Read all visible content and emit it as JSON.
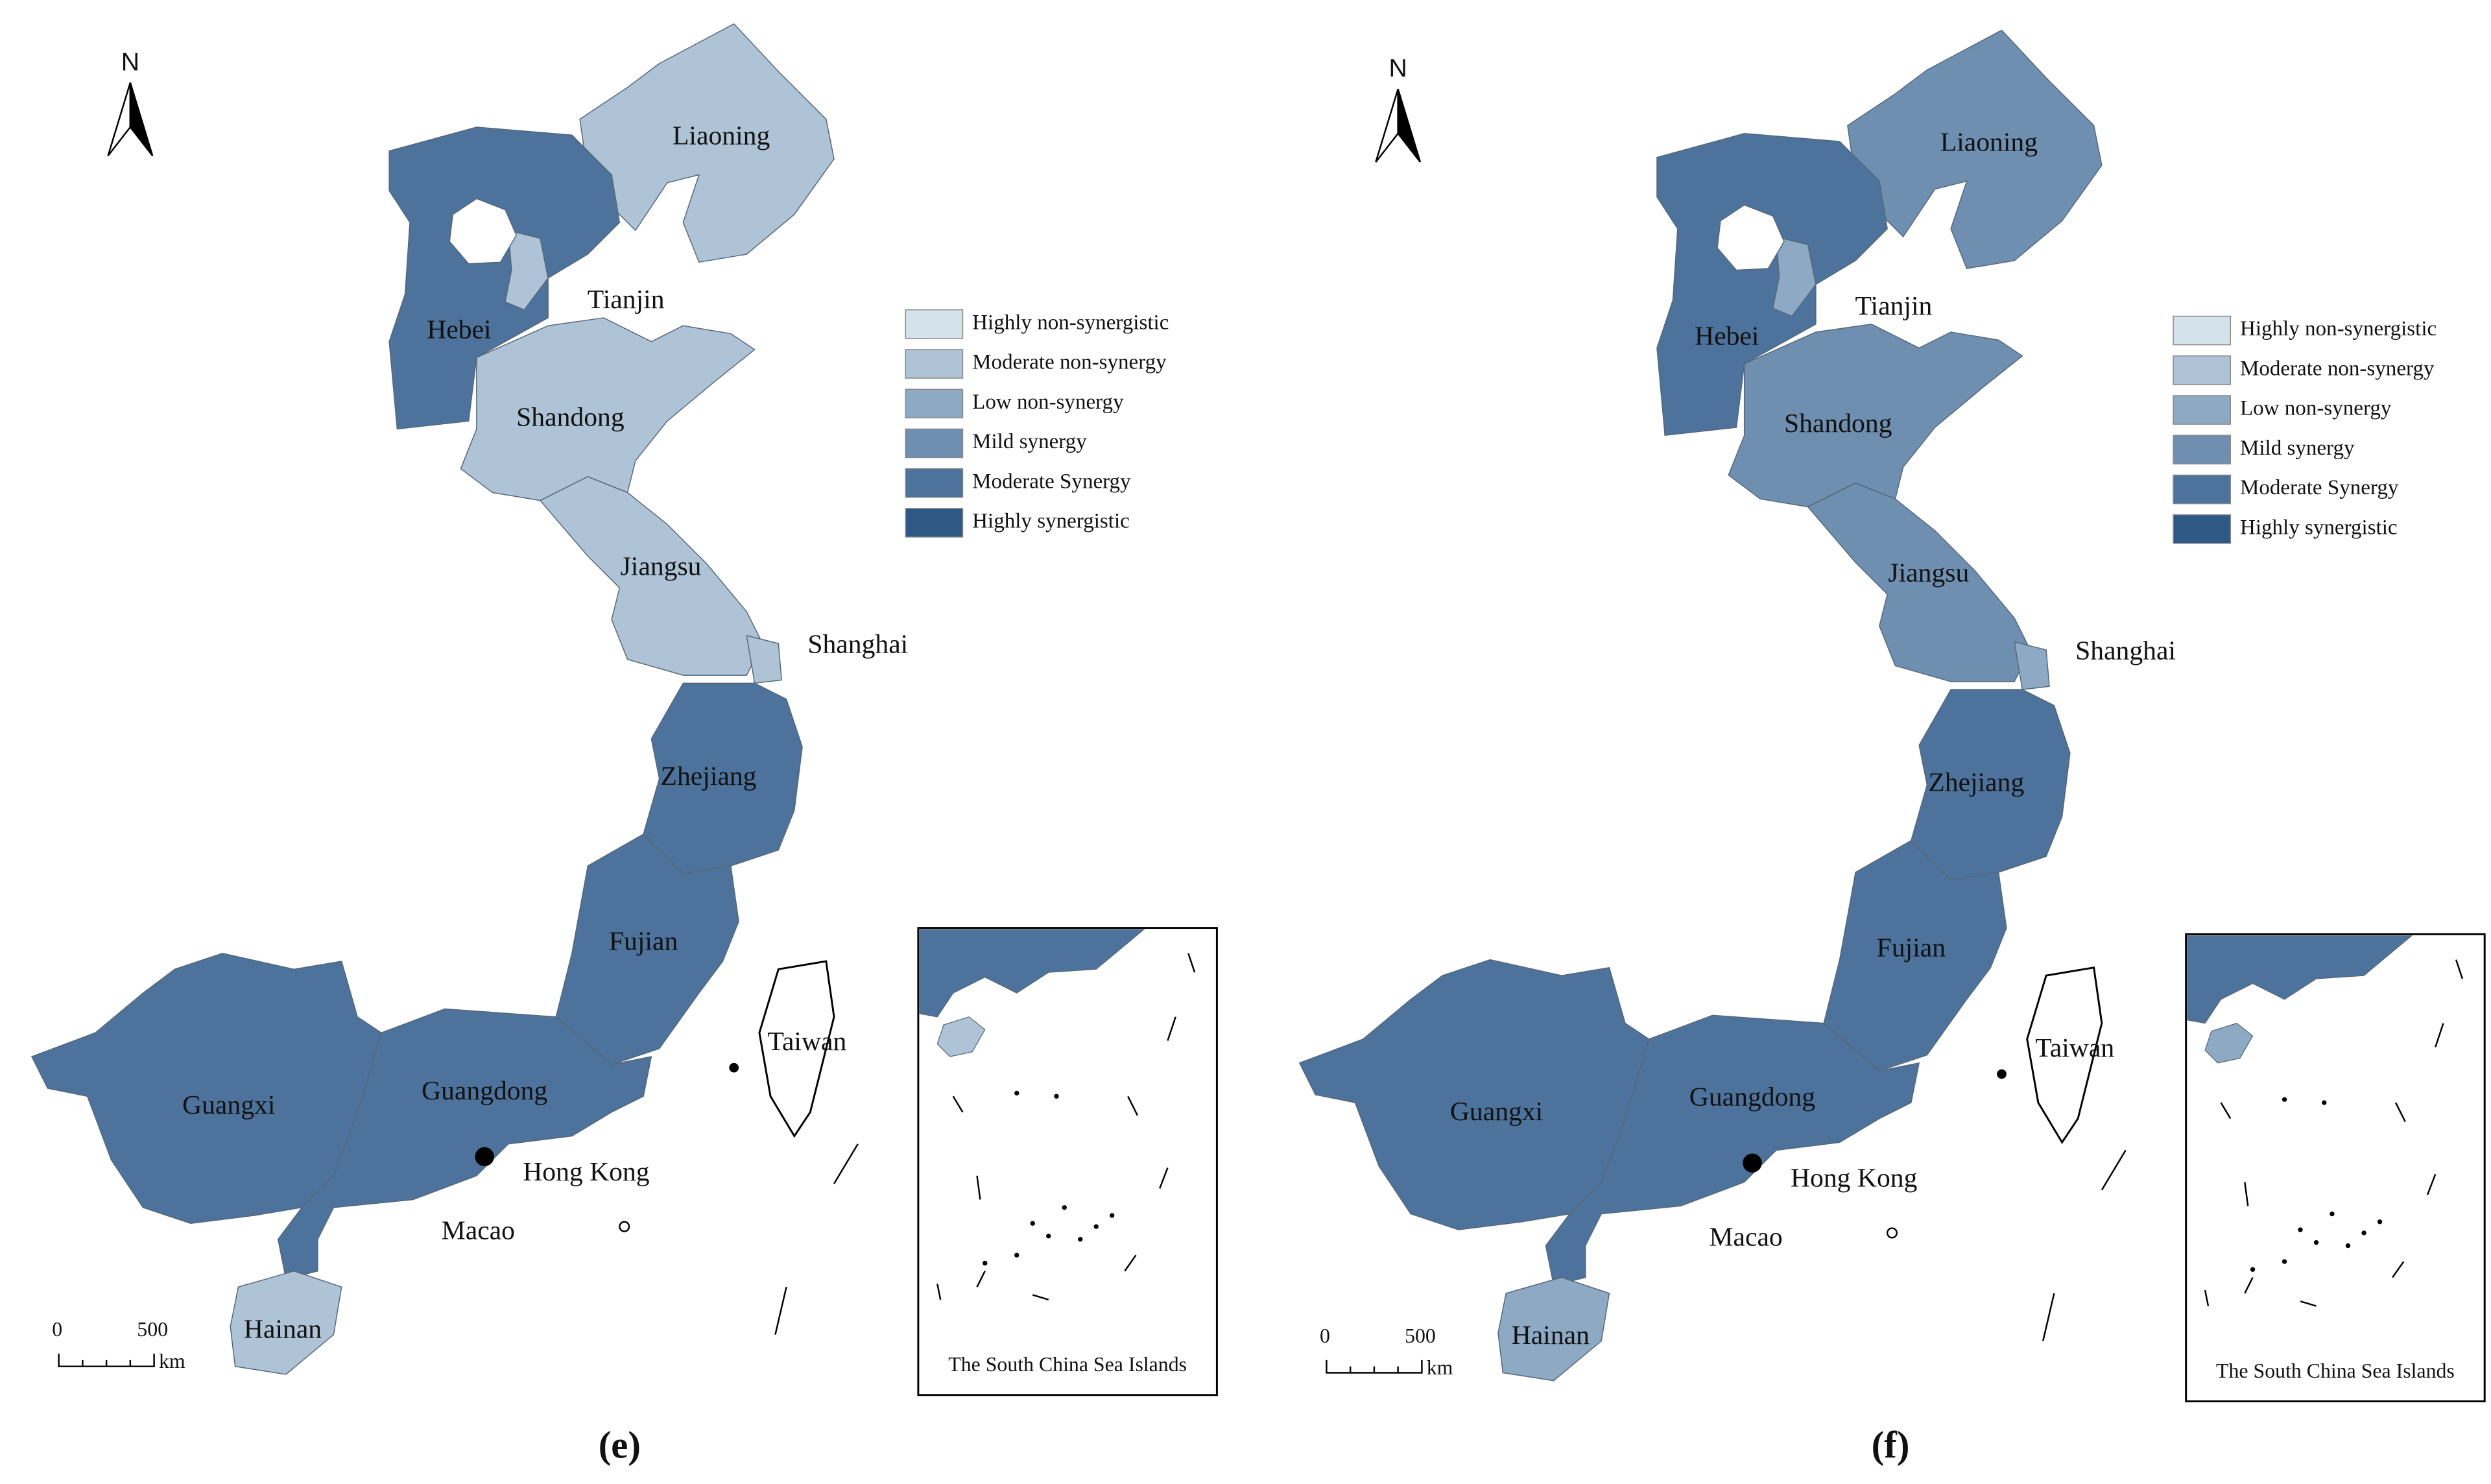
{
  "panels": [
    {
      "label": "(e)",
      "north": "N",
      "regions": [
        {
          "name": "Liaoning",
          "color": "#aec4d6"
        },
        {
          "name": "Hebei",
          "color": "#4d739c"
        },
        {
          "name": "Tianjin",
          "color": "#aec4d6"
        },
        {
          "name": "Shandong",
          "color": "#aec4d6"
        },
        {
          "name": "Jiangsu",
          "color": "#aec4d6"
        },
        {
          "name": "Shanghai",
          "color": "#aec4d6"
        },
        {
          "name": "Zhejiang",
          "color": "#4d739c"
        },
        {
          "name": "Fujian",
          "color": "#4d739c"
        },
        {
          "name": "Guangdong",
          "color": "#4d739c"
        },
        {
          "name": "Guangxi",
          "color": "#4d739c"
        },
        {
          "name": "Hainan",
          "color": "#aec4d6"
        }
      ],
      "place_labels": [
        "Hong Kong",
        "Macao",
        "Taiwan"
      ],
      "legend": [
        {
          "label": "Highly non-synergistic",
          "color": "#d4e3ea"
        },
        {
          "label": "Moderate non-synergy",
          "color": "#aec4d6"
        },
        {
          "label": "Low non-synergy",
          "color": "#8ea9c4"
        },
        {
          "label": "Mild synergy",
          "color": "#6f8fb0"
        },
        {
          "label": "Moderate Synergy",
          "color": "#4d739c"
        },
        {
          "label": "Highly synergistic",
          "color": "#2f5985"
        }
      ],
      "scale": {
        "ticks": [
          0,
          500
        ],
        "unit": "km"
      },
      "inset_caption": "The South China Sea Islands"
    },
    {
      "label": "(f)",
      "north": "N",
      "regions": [
        {
          "name": "Liaoning",
          "color": "#6f8fb0"
        },
        {
          "name": "Hebei",
          "color": "#4d739c"
        },
        {
          "name": "Tianjin",
          "color": "#8ea9c4"
        },
        {
          "name": "Shandong",
          "color": "#6f8fb0"
        },
        {
          "name": "Jiangsu",
          "color": "#6f8fb0"
        },
        {
          "name": "Shanghai",
          "color": "#8ea9c4"
        },
        {
          "name": "Zhejiang",
          "color": "#4d739c"
        },
        {
          "name": "Fujian",
          "color": "#4d739c"
        },
        {
          "name": "Guangdong",
          "color": "#4d739c"
        },
        {
          "name": "Guangxi",
          "color": "#4d739c"
        },
        {
          "name": "Hainan",
          "color": "#8ea9c4"
        }
      ],
      "place_labels": [
        "Hong Kong",
        "Macao",
        "Taiwan"
      ],
      "legend": [
        {
          "label": "Highly non-synergistic",
          "color": "#d4e3ea"
        },
        {
          "label": "Moderate non-synergy",
          "color": "#aec4d6"
        },
        {
          "label": "Low non-synergy",
          "color": "#8ea9c4"
        },
        {
          "label": "Mild synergy",
          "color": "#6f8fb0"
        },
        {
          "label": "Moderate Synergy",
          "color": "#4d739c"
        },
        {
          "label": "Highly synergistic",
          "color": "#2f5985"
        }
      ],
      "scale": {
        "ticks": [
          0,
          500
        ],
        "unit": "km"
      },
      "inset_caption": "The South China Sea Islands"
    }
  ]
}
